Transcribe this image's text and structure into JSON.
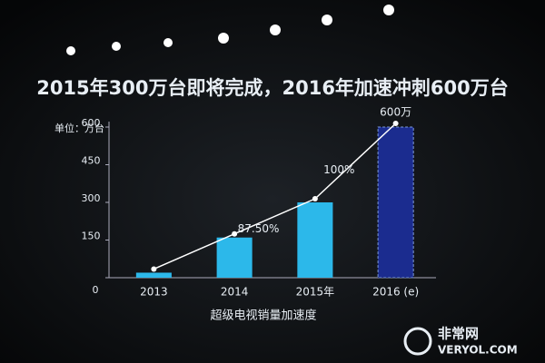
{
  "chart_data": {
    "type": "bar",
    "title": "2015年300万台即将完成，2016年加速冲刺600万台",
    "y_label": "单位：万台",
    "x_label": "超级电视销量加速度",
    "categories": [
      "2013",
      "2014",
      "2015年",
      "2016 (e)"
    ],
    "values": [
      20,
      160,
      300,
      600
    ],
    "colors": [
      "#2cb8ea",
      "#2cb8ea",
      "#2cb8ea",
      "#1b2c8f"
    ],
    "annotations": [
      {
        "text": "87.50%"
      },
      {
        "text": "100%"
      },
      {
        "text": "600万"
      }
    ],
    "trend_color": "#ffffff",
    "ylim": [
      0,
      600
    ],
    "yticks": [
      0,
      150,
      300,
      450,
      600
    ],
    "watermark": {
      "name": "非常网",
      "site": "VERYOL.COM"
    }
  }
}
